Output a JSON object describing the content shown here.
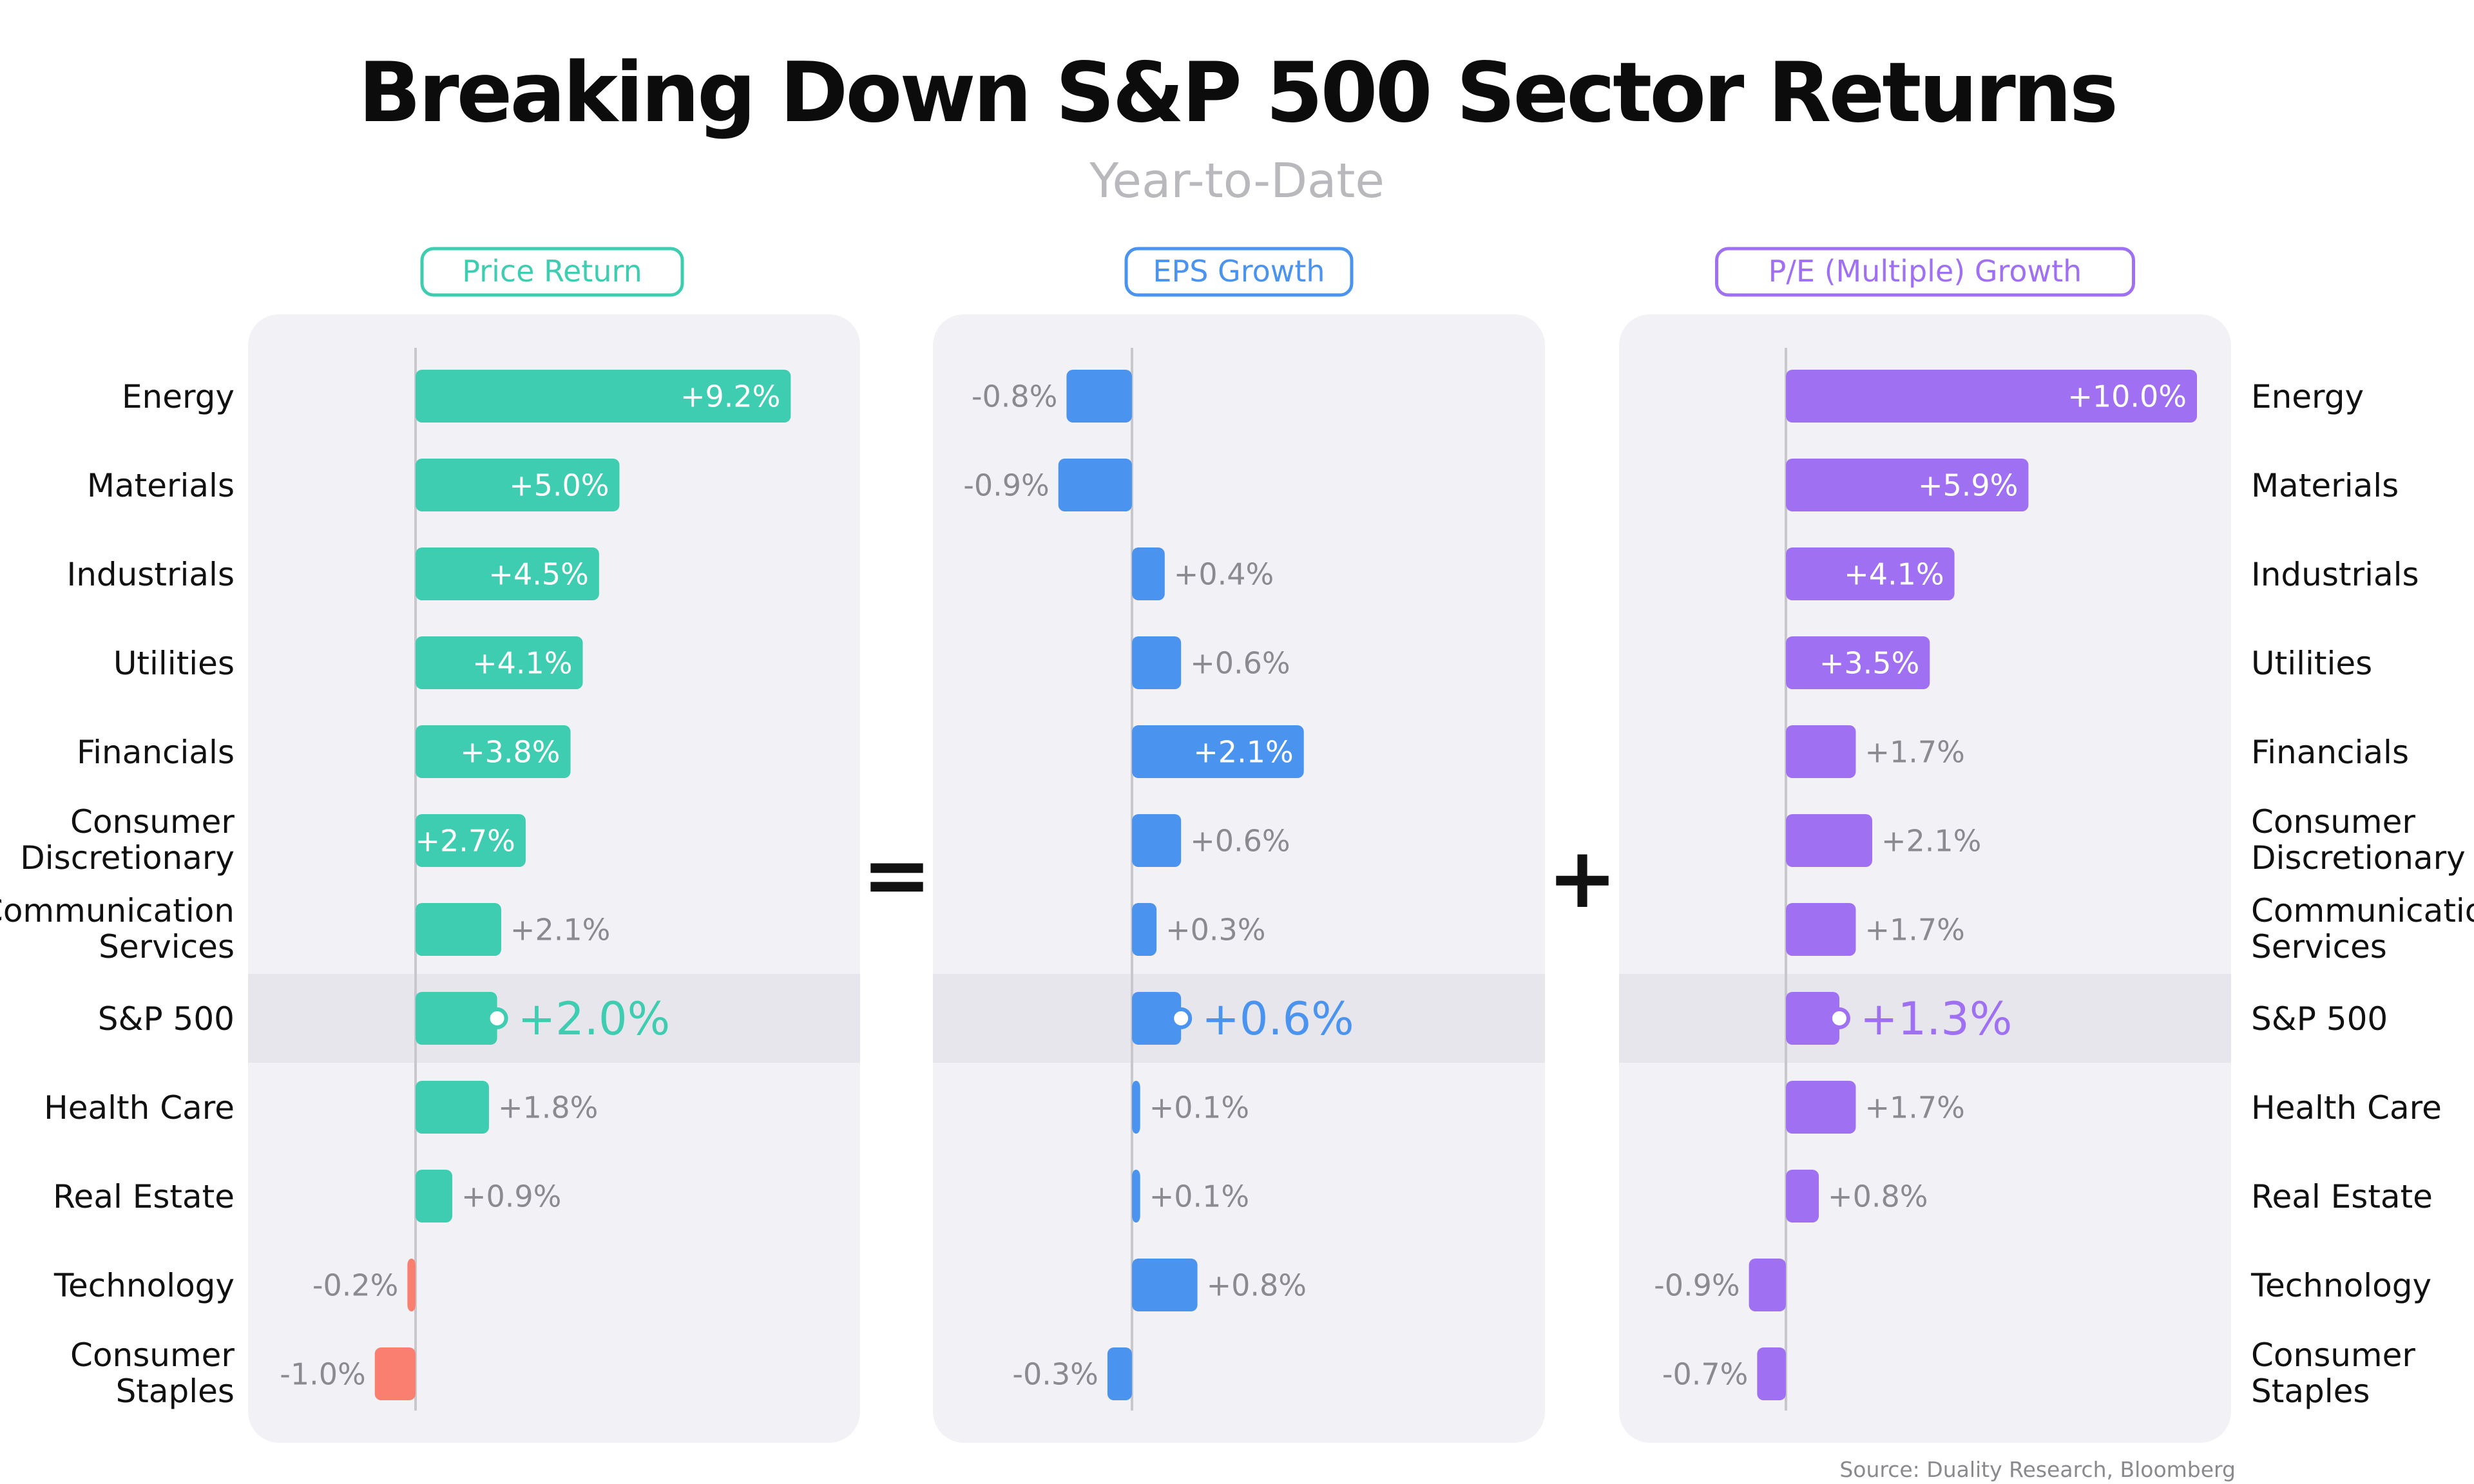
{
  "title": "Breaking Down S&P 500 Sector Returns",
  "subtitle": "Year-to-Date",
  "source": "Source: Duality Research, Bloomberg",
  "operators": {
    "equals": "=",
    "plus": "+"
  },
  "highlight_category": "S&P 500",
  "colors": {
    "price": "#3ecdb0",
    "eps": "#4a93ef",
    "pe": "#a070f2",
    "negative_price": "#fa7f70",
    "panel_bg": "#f2f2f6",
    "highlight_bg": "#e6e6ec",
    "label_gray": "#8a8a90"
  },
  "chart_data": [
    {
      "type": "bar",
      "orientation": "horizontal",
      "title": "Price Return",
      "categories": [
        "Energy",
        "Materials",
        "Industrials",
        "Utilities",
        "Financials",
        "Consumer Discretionary",
        "Communication Services",
        "S&P 500",
        "Health Care",
        "Real Estate",
        "Technology",
        "Consumer Staples"
      ],
      "values": [
        9.2,
        5.0,
        4.5,
        4.1,
        3.8,
        2.7,
        2.1,
        2.0,
        1.8,
        0.9,
        -0.2,
        -1.0
      ],
      "labels": [
        "+9.2%",
        "+5.0%",
        "+4.5%",
        "+4.1%",
        "+3.8%",
        "+2.7%",
        "+2.1%",
        "+2.0%",
        "+1.8%",
        "+0.9%",
        "-0.2%",
        "-1.0%"
      ],
      "unit": "%"
    },
    {
      "type": "bar",
      "orientation": "horizontal",
      "title": "EPS Growth",
      "categories": [
        "Energy",
        "Materials",
        "Industrials",
        "Utilities",
        "Financials",
        "Consumer Discretionary",
        "Communication Services",
        "S&P 500",
        "Health Care",
        "Real Estate",
        "Technology",
        "Consumer Staples"
      ],
      "values": [
        -0.8,
        -0.9,
        0.4,
        0.6,
        2.1,
        0.6,
        0.3,
        0.6,
        0.1,
        0.1,
        0.8,
        -0.3
      ],
      "labels": [
        "-0.8%",
        "-0.9%",
        "+0.4%",
        "+0.6%",
        "+2.1%",
        "+0.6%",
        "+0.3%",
        "+0.6%",
        "+0.1%",
        "+0.1%",
        "+0.8%",
        "-0.3%"
      ],
      "unit": "%"
    },
    {
      "type": "bar",
      "orientation": "horizontal",
      "title": "P/E (Multiple) Growth",
      "categories": [
        "Energy",
        "Materials",
        "Industrials",
        "Utilities",
        "Financials",
        "Consumer Discretionary",
        "Communication Services",
        "S&P 500",
        "Health Care",
        "Real Estate",
        "Technology",
        "Consumer Staples"
      ],
      "values": [
        10.0,
        5.9,
        4.1,
        3.5,
        1.7,
        2.1,
        1.7,
        1.3,
        1.7,
        0.8,
        -0.9,
        -0.7
      ],
      "labels": [
        "+10.0%",
        "+5.9%",
        "+4.1%",
        "+3.5%",
        "+1.7%",
        "+2.1%",
        "+1.7%",
        "+1.3%",
        "+1.7%",
        "+0.8%",
        "-0.9%",
        "-0.7%"
      ],
      "unit": "%"
    }
  ]
}
